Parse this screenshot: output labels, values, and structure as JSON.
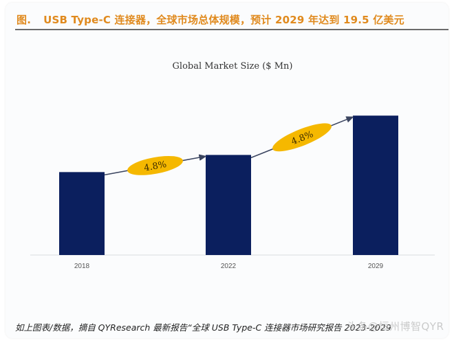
{
  "figure": {
    "label": "图.",
    "title": "USB Type-C 连接器，全球市场总体规模，预计 2029 年达到 19.5 亿美元",
    "source": "如上图表/数据，摘自 QYResearch 最新报告“全球 USB Type-C 连接器市场研究报告 2023-2029",
    "watermark": "头条@恒州博智QYR"
  },
  "colors": {
    "title": "#e08a1e",
    "bar": "#0b1f5e",
    "cagr_ellipse": "#f5b800",
    "cagr_text": "#3a2a00",
    "arrow": "#3b4560",
    "axis": "#d8dbe0"
  },
  "chart_data": {
    "type": "bar",
    "title": "Global Market Size ($ Mn)",
    "xlabel": "",
    "ylabel": "",
    "categories": [
      "2018",
      "2022",
      "2029"
    ],
    "values": [
      1160,
      1400,
      1950
    ],
    "ylim": [
      0,
      2000
    ],
    "grid": false,
    "legend": "none",
    "annotations": [
      {
        "from": "2018",
        "to": "2022",
        "text": "4.8%",
        "type": "CAGR"
      },
      {
        "from": "2022",
        "to": "2029",
        "text": "4.8%",
        "type": "CAGR"
      }
    ]
  }
}
